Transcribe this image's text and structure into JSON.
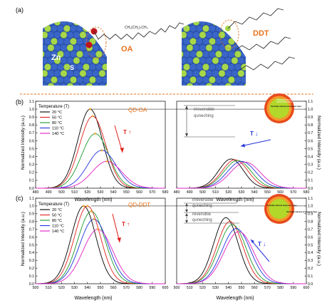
{
  "panel_labels": {
    "a": "(a)",
    "b": "(b)",
    "c": "(c)"
  },
  "illustration": {
    "oa_label": "OA",
    "ddt_label": "DDT",
    "zn_label": "Zn",
    "s_label": "S",
    "oa_formula": "CH₂(CH₂)₇CH₃",
    "colors": {
      "zn": "#3a66c8",
      "s": "#a8d84a",
      "oa_text": "#e8731c"
    }
  },
  "axes": {
    "xlabel": "Wavelength (nm)",
    "ylabel": "Normalized Intensity (a.u.)"
  },
  "legend": {
    "title": "Temperature (T)",
    "entries": [
      "20 °C",
      "50 °C",
      "80 °C",
      "110 °C",
      "140 °C"
    ]
  },
  "series_colors": [
    "#000000",
    "#e0201b",
    "#1a9a2c",
    "#2233dd",
    "#e020c0"
  ],
  "annotations": {
    "qd_oa": "QD-OA",
    "qd_ddt": "QD-DDT",
    "t_up": "T ↑",
    "t_down": "T ↓",
    "irreversible": "irreversible quneching",
    "irreversible2": "irreversible quneching",
    "reversible": "reversible quneching",
    "inset_text_top": "thermally induced permanent traps",
    "inset_text_mid": "thermally induced temporary traps",
    "inset_text_right": "thermally induced permanent traps"
  },
  "chart_data": [
    {
      "id": "b-left",
      "type": "line",
      "xlim": [
        480,
        580
      ],
      "ylim": [
        0.0,
        1.1
      ],
      "xticks": [
        480,
        490,
        500,
        510,
        520,
        530,
        540,
        550,
        560,
        570,
        580
      ],
      "yticks": [
        0.0,
        0.1,
        0.2,
        0.3,
        0.4,
        0.5,
        0.6,
        0.7,
        0.8,
        0.9,
        1.0,
        1.1
      ],
      "series": [
        {
          "name": "20 °C",
          "peak_x": 522,
          "peak_y": 1.0,
          "width": 9.5
        },
        {
          "name": "50 °C",
          "peak_x": 524,
          "peak_y": 0.91,
          "width": 10
        },
        {
          "name": "80 °C",
          "peak_x": 526,
          "peak_y": 0.69,
          "width": 10.5
        },
        {
          "name": "110 °C",
          "peak_x": 531,
          "peak_y": 0.48,
          "width": 11
        },
        {
          "name": "140 °C",
          "peak_x": 535,
          "peak_y": 0.34,
          "width": 11.5
        }
      ]
    },
    {
      "id": "b-right",
      "type": "line",
      "xlim": [
        480,
        580
      ],
      "ylim": [
        0.0,
        1.1
      ],
      "xticks": [
        480,
        490,
        500,
        510,
        520,
        530,
        540,
        550,
        560,
        570,
        580
      ],
      "yticks": [
        0.0,
        0.1,
        0.2,
        0.3,
        0.4,
        0.5,
        0.6,
        0.7,
        0.8,
        0.9,
        1.0,
        1.1
      ],
      "series": [
        {
          "name": "20 °C",
          "peak_x": 522,
          "peak_y": 0.37,
          "width": 9.5
        },
        {
          "name": "50 °C",
          "peak_x": 525,
          "peak_y": 0.36,
          "width": 10
        },
        {
          "name": "80 °C",
          "peak_x": 527,
          "peak_y": 0.35,
          "width": 10.5
        },
        {
          "name": "110 °C",
          "peak_x": 530,
          "peak_y": 0.34,
          "width": 11
        },
        {
          "name": "140 °C",
          "peak_x": 533,
          "peak_y": 0.33,
          "width": 11.5
        }
      ]
    },
    {
      "id": "c-left",
      "type": "line",
      "xlim": [
        500,
        600
      ],
      "ylim": [
        0.0,
        1.1
      ],
      "xticks": [
        500,
        510,
        520,
        530,
        540,
        550,
        560,
        570,
        580,
        590,
        600
      ],
      "yticks": [
        0.0,
        0.1,
        0.2,
        0.3,
        0.4,
        0.5,
        0.6,
        0.7,
        0.8,
        0.9,
        1.0,
        1.1
      ],
      "series": [
        {
          "name": "20 °C",
          "peak_x": 537,
          "peak_y": 1.0,
          "width": 9.5
        },
        {
          "name": "50 °C",
          "peak_x": 540,
          "peak_y": 1.0,
          "width": 10
        },
        {
          "name": "80 °C",
          "peak_x": 543,
          "peak_y": 0.93,
          "width": 10.5
        },
        {
          "name": "110 °C",
          "peak_x": 545,
          "peak_y": 0.83,
          "width": 11
        },
        {
          "name": "140 °C",
          "peak_x": 548,
          "peak_y": 0.7,
          "width": 11.5
        }
      ]
    },
    {
      "id": "c-right",
      "type": "line",
      "xlim": [
        500,
        600
      ],
      "ylim": [
        0.0,
        1.1
      ],
      "xticks": [
        500,
        510,
        520,
        530,
        540,
        550,
        560,
        570,
        580,
        590,
        600
      ],
      "yticks": [
        0.0,
        0.1,
        0.2,
        0.3,
        0.4,
        0.5,
        0.6,
        0.7,
        0.8,
        0.9,
        1.0,
        1.1
      ],
      "series": [
        {
          "name": "20 °C",
          "peak_x": 538,
          "peak_y": 0.85,
          "width": 9.5
        },
        {
          "name": "50 °C",
          "peak_x": 541,
          "peak_y": 0.8,
          "width": 10
        },
        {
          "name": "80 °C",
          "peak_x": 543,
          "peak_y": 0.76,
          "width": 10.5
        },
        {
          "name": "110 °C",
          "peak_x": 546,
          "peak_y": 0.71,
          "width": 11
        },
        {
          "name": "140 °C",
          "peak_x": 548,
          "peak_y": 0.67,
          "width": 11.5
        }
      ]
    }
  ]
}
